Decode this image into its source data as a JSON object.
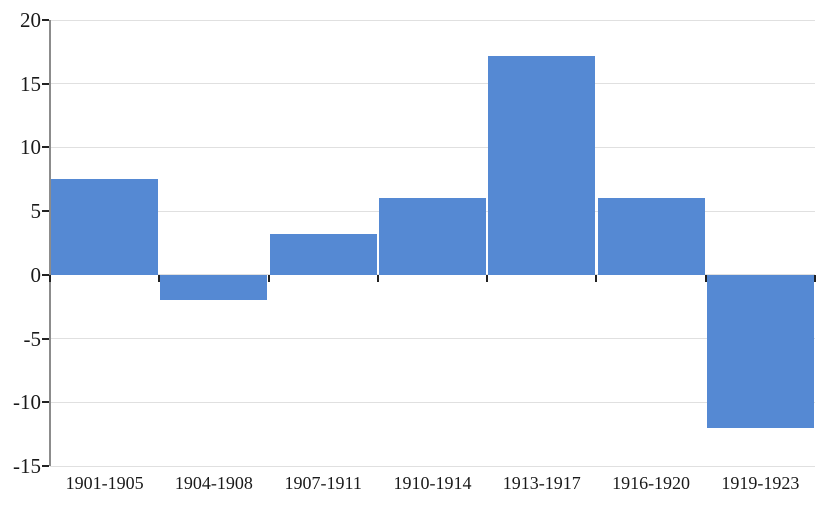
{
  "chart_data": {
    "type": "bar",
    "title": "",
    "xlabel": "",
    "ylabel": "",
    "categories": [
      "1901-1905",
      "1904-1908",
      "1907-1911",
      "1910-1914",
      "1913-1917",
      "1916-1920",
      "1919-1923"
    ],
    "values": [
      7.5,
      -2,
      3.2,
      6,
      17.2,
      6,
      -12
    ],
    "ylim": [
      -15,
      20
    ],
    "yticks": [
      20,
      15,
      10,
      5,
      0,
      -5,
      -10,
      -15
    ],
    "grid": true,
    "legend": false,
    "colors": {
      "bar": "#5589d3",
      "gridline": "#e0e0e0",
      "axis_line": "#8c8c8c",
      "tick": "#222222",
      "text": "#1a1a1a",
      "background": "#ffffff"
    }
  }
}
